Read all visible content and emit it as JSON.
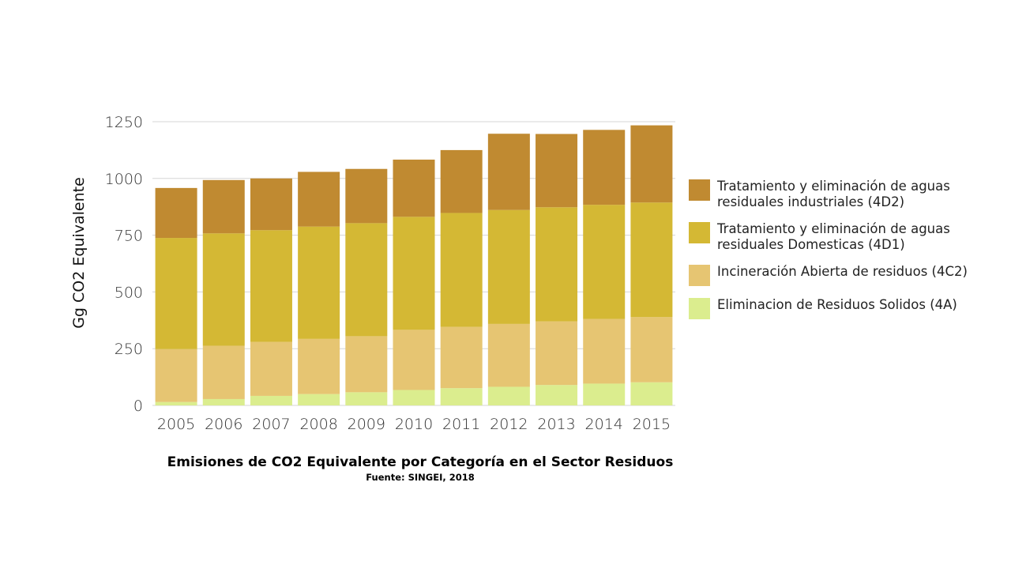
{
  "chart_data": {
    "type": "bar",
    "stacked": true,
    "title": "Emisiones de CO2 Equivalente por Categoría en el Sector Residuos",
    "subtitle": "Fuente: SINGEI, 2018",
    "xlabel": "",
    "ylabel": "Gg CO2 Equivalente",
    "ylim": [
      0,
      1250
    ],
    "yticks": [
      "0",
      "250",
      "500",
      "750",
      "1000",
      "1250"
    ],
    "grid": true,
    "legend_position": "right",
    "categories": [
      "2005",
      "2006",
      "2007",
      "2008",
      "2009",
      "2010",
      "2011",
      "2012",
      "2013",
      "2014",
      "2015"
    ],
    "series": [
      {
        "name": "Eliminacion de Residuos Solidos (4A)",
        "color": "#dbed8e",
        "values": [
          15,
          28,
          42,
          50,
          58,
          68,
          76,
          82,
          90,
          96,
          102
        ]
      },
      {
        "name": "Incineración Abierta de residuos (4C2)",
        "color": "#e6c572",
        "values": [
          233,
          235,
          238,
          243,
          247,
          265,
          270,
          277,
          280,
          285,
          287
        ]
      },
      {
        "name": "Tratamiento y eliminación de aguas\nresiduales Domesticas  (4D1)",
        "color": "#d4b834",
        "values": [
          490,
          495,
          492,
          495,
          498,
          498,
          502,
          502,
          503,
          503,
          505
        ]
      },
      {
        "name": "Tratamiento y eliminación de aguas\nresiduales industriales (4D2)",
        "color": "#c08a31",
        "values": [
          220,
          235,
          228,
          241,
          239,
          252,
          277,
          336,
          323,
          330,
          340
        ]
      }
    ]
  }
}
